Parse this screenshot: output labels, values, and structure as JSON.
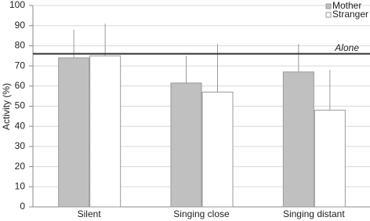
{
  "chart_data": {
    "type": "bar",
    "y_label": "Activity (%)",
    "categories": [
      "Silent",
      "Singing close",
      "Singing distant"
    ],
    "series": [
      {
        "name": "Mother",
        "color": "#c0c0c0",
        "values": [
          74,
          61.5,
          67
        ],
        "errors": [
          14,
          13.5,
          14
        ]
      },
      {
        "name": "Stranger",
        "color": "#ffffff",
        "values": [
          75,
          57,
          48
        ],
        "errors": [
          16,
          24,
          20
        ]
      }
    ],
    "reference_line": {
      "label": "Alone",
      "value": 76
    },
    "ylim": [
      0,
      100
    ],
    "yticks": [
      0,
      10,
      20,
      30,
      40,
      50,
      60,
      70,
      80,
      90,
      100
    ],
    "grid": true,
    "legend": "top-right"
  }
}
